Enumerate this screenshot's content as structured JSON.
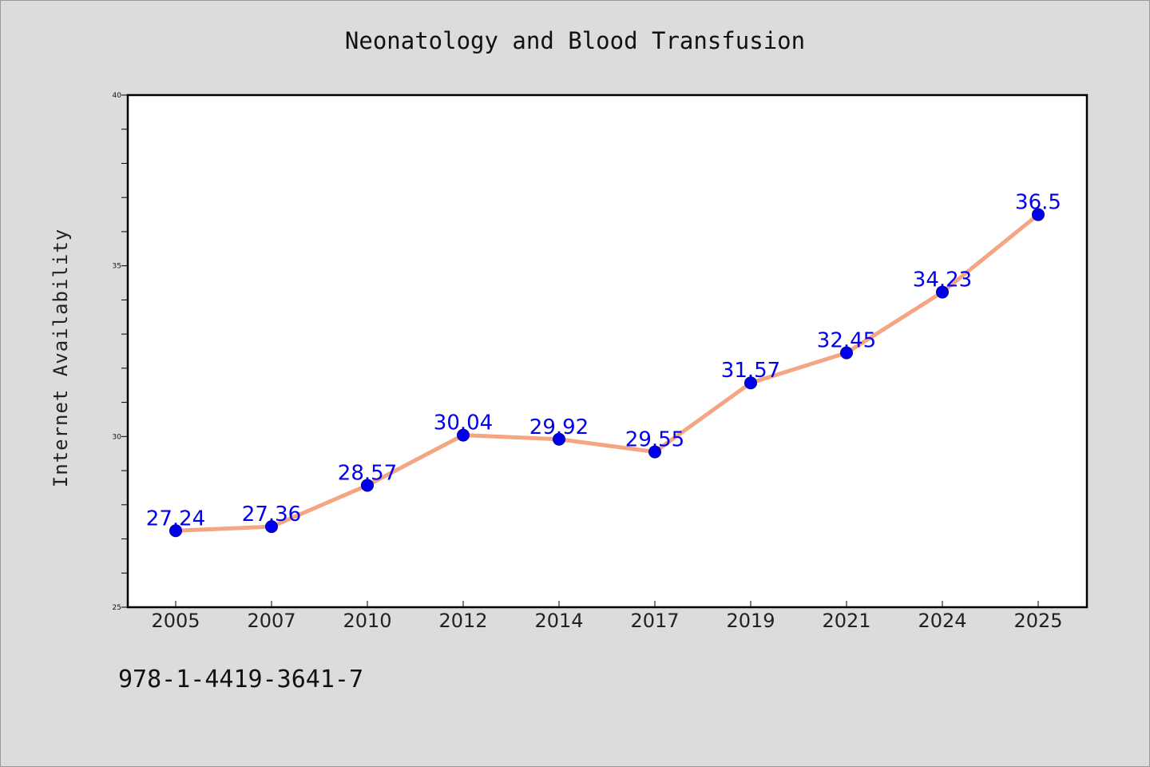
{
  "title": "Neonatology and Blood Transfusion",
  "isbn": "978-1-4419-3641-7",
  "colors": {
    "background": "#dcdcdc",
    "plot_background": "#ffffff",
    "line": "#f4a582",
    "marker": "#0000ee",
    "data_label": "#0000ee"
  },
  "chart_data": {
    "type": "line",
    "title": "Neonatology and Blood Transfusion",
    "xlabel": "",
    "ylabel": "Internet Availability",
    "categories": [
      "2005",
      "2007",
      "2010",
      "2012",
      "2014",
      "2017",
      "2019",
      "2021",
      "2024",
      "2025"
    ],
    "series": [
      {
        "values": [
          27.24,
          27.36,
          28.57,
          30.04,
          29.92,
          29.55,
          31.57,
          32.45,
          34.23,
          36.5
        ],
        "labels": [
          "27.24",
          "27.36",
          "28.57",
          "30.04",
          "29.92",
          "29.55",
          "31.57",
          "32.45",
          "34.23",
          "36.5"
        ]
      }
    ],
    "ylim": [
      25,
      40
    ],
    "yticks": [
      25,
      30,
      35,
      40
    ],
    "yminor_step": 1,
    "grid": false,
    "legend": "none"
  }
}
